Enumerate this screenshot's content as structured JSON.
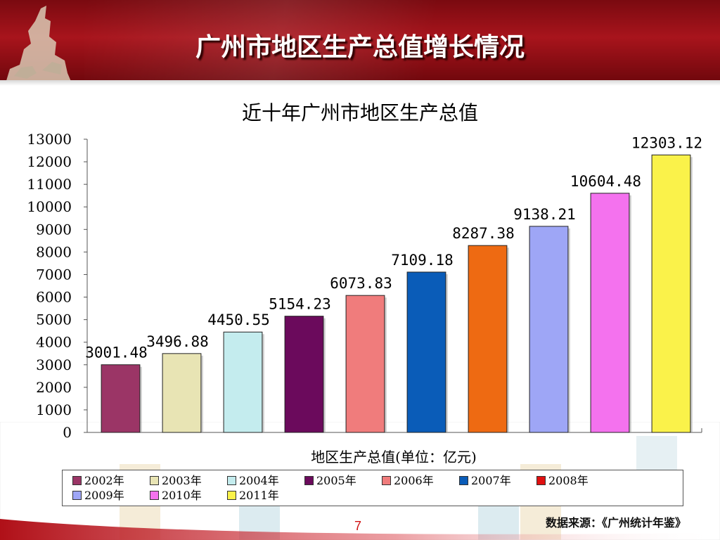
{
  "slide": {
    "title": "广州市地区生产总值增长情况",
    "source": "数据来源：《广州统计年鉴》",
    "page_number": "7"
  },
  "colors": {
    "header": "#8b0e14",
    "page_number": "#d01010"
  },
  "chart_data": {
    "type": "bar",
    "title": "近十年广州市地区生产总值",
    "xlabel": "地区生产总值(单位：亿元)",
    "ylabel": "",
    "ylim": [
      0,
      13000
    ],
    "yticks": [
      0,
      1000,
      2000,
      3000,
      4000,
      5000,
      6000,
      7000,
      8000,
      9000,
      10000,
      11000,
      12000,
      13000
    ],
    "grid": false,
    "legend_position": "bottom",
    "series": [
      {
        "name": "2002年",
        "value": 3001.48,
        "label": "3001.48",
        "color": "#9b3566"
      },
      {
        "name": "2003年",
        "value": 3496.88,
        "label": "3496.88",
        "color": "#e8e4b4"
      },
      {
        "name": "2004年",
        "value": 4450.55,
        "label": "4450.55",
        "color": "#c4ecee"
      },
      {
        "name": "2005年",
        "value": 5154.23,
        "label": "5154.23",
        "color": "#6b0a5c"
      },
      {
        "name": "2006年",
        "value": 6073.83,
        "label": "6073.83",
        "color": "#f07c7c"
      },
      {
        "name": "2007年",
        "value": 7109.18,
        "label": "7109.18",
        "color": "#0a5cb8"
      },
      {
        "name": "2008年",
        "value": 8287.38,
        "label": "8287.38",
        "color": "#ee6a12",
        "legend_color": "#e01010"
      },
      {
        "name": "2009年",
        "value": 9138.21,
        "label": "9138.21",
        "color": "#9ea6f6"
      },
      {
        "name": "2010年",
        "value": 10604.48,
        "label": "10604.48",
        "color": "#f472ee"
      },
      {
        "name": "2011年",
        "value": 12303.12,
        "label": "12303.12",
        "color": "#faf24a"
      }
    ]
  }
}
